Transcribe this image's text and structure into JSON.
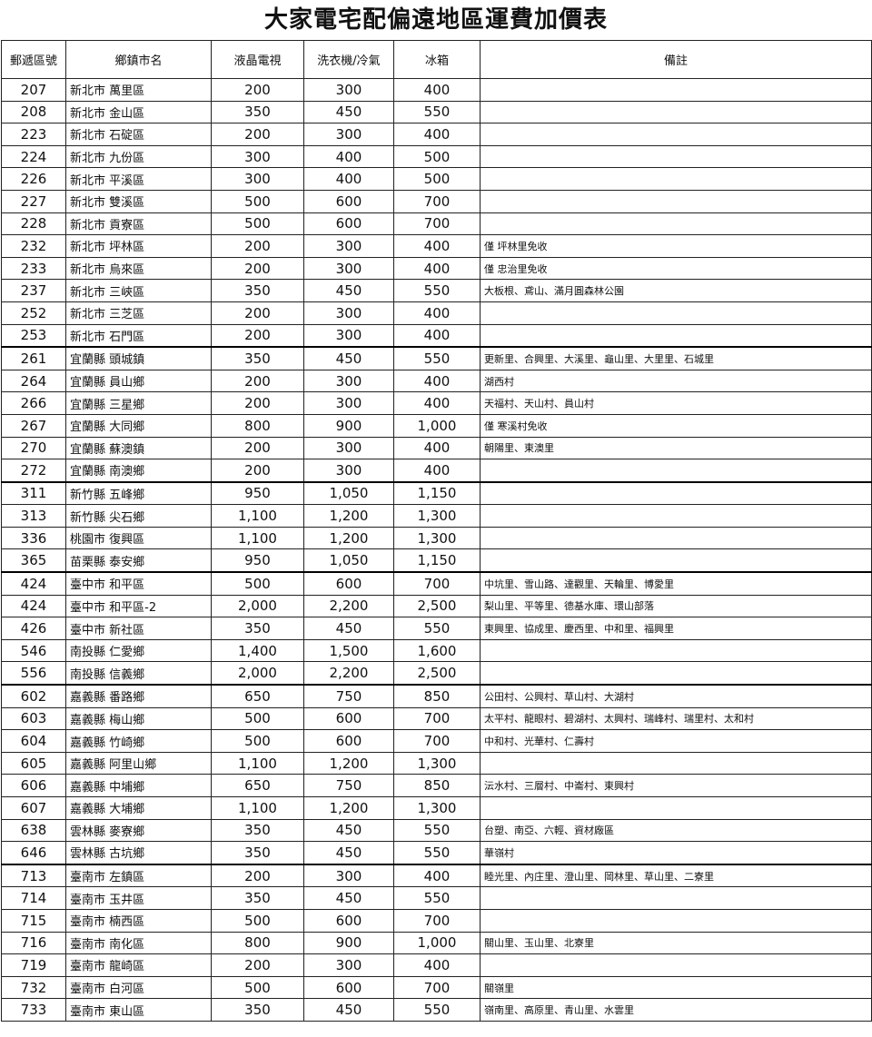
{
  "title": "大家電宅配偏遠地區運費加價表",
  "columns": [
    "郵遞區號",
    "鄉鎮市名",
    "液晶電視",
    "洗衣機/冷氣",
    "冰箱",
    "備註"
  ],
  "rows": [
    [
      "207",
      "新北市 萬里區",
      "200",
      "300",
      "400",
      ""
    ],
    [
      "208",
      "新北市 金山區",
      "350",
      "450",
      "550",
      ""
    ],
    [
      "223",
      "新北市 石碇區",
      "200",
      "300",
      "400",
      ""
    ],
    [
      "224",
      "新北市 九份區",
      "300",
      "400",
      "500",
      ""
    ],
    [
      "226",
      "新北市 平溪區",
      "300",
      "400",
      "500",
      ""
    ],
    [
      "227",
      "新北市 雙溪區",
      "500",
      "600",
      "700",
      ""
    ],
    [
      "228",
      "新北市 貢寮區",
      "500",
      "600",
      "700",
      ""
    ],
    [
      "232",
      "新北市 坪林區",
      "200",
      "300",
      "400",
      "僅 坪林里免收"
    ],
    [
      "233",
      "新北市 烏來區",
      "200",
      "300",
      "400",
      "僅 忠治里免收"
    ],
    [
      "237",
      "新北市 三峽區",
      "350",
      "450",
      "550",
      "大板根、鳶山、滿月圓森林公園"
    ],
    [
      "252",
      "新北市 三芝區",
      "200",
      "300",
      "400",
      ""
    ],
    [
      "253",
      "新北市 石門區",
      "200",
      "300",
      "400",
      ""
    ],
    [
      "261",
      "宜蘭縣 頭城鎮",
      "350",
      "450",
      "550",
      "更新里、合興里、大溪里、龜山里、大里里、石城里"
    ],
    [
      "264",
      "宜蘭縣 員山鄉",
      "200",
      "300",
      "400",
      "湖西村"
    ],
    [
      "266",
      "宜蘭縣 三星鄉",
      "200",
      "300",
      "400",
      "天福村、天山村、員山村"
    ],
    [
      "267",
      "宜蘭縣 大同鄉",
      "800",
      "900",
      "1,000",
      "僅 寒溪村免收"
    ],
    [
      "270",
      "宜蘭縣 蘇澳鎮",
      "200",
      "300",
      "400",
      "朝陽里、東澳里"
    ],
    [
      "272",
      "宜蘭縣 南澳鄉",
      "200",
      "300",
      "400",
      ""
    ],
    [
      "311",
      "新竹縣 五峰鄉",
      "950",
      "1,050",
      "1,150",
      ""
    ],
    [
      "313",
      "新竹縣 尖石鄉",
      "1,100",
      "1,200",
      "1,300",
      ""
    ],
    [
      "336",
      "桃園市 復興區",
      "1,100",
      "1,200",
      "1,300",
      ""
    ],
    [
      "365",
      "苗栗縣 泰安鄉",
      "950",
      "1,050",
      "1,150",
      ""
    ],
    [
      "424",
      "臺中市 和平區",
      "500",
      "600",
      "700",
      "中坑里、雪山路、達觀里、天輪里、博愛里"
    ],
    [
      "424",
      "臺中市 和平區-2",
      "2,000",
      "2,200",
      "2,500",
      "梨山里、平等里、德基水庫、環山部落"
    ],
    [
      "426",
      "臺中市 新社區",
      "350",
      "450",
      "550",
      "東興里、協成里、慶西里、中和里、福興里"
    ],
    [
      "546",
      "南投縣 仁愛鄉",
      "1,400",
      "1,500",
      "1,600",
      ""
    ],
    [
      "556",
      "南投縣 信義鄉",
      "2,000",
      "2,200",
      "2,500",
      ""
    ],
    [
      "602",
      "嘉義縣 番路鄉",
      "650",
      "750",
      "850",
      "公田村、公興村、草山村、大湖村"
    ],
    [
      "603",
      "嘉義縣 梅山鄉",
      "500",
      "600",
      "700",
      "太平村、龍眼村、碧湖村、太興村、瑞峰村、瑞里村、太和村"
    ],
    [
      "604",
      "嘉義縣 竹崎鄉",
      "500",
      "600",
      "700",
      "中和村、光華村、仁壽村"
    ],
    [
      "605",
      "嘉義縣 阿里山鄉",
      "1,100",
      "1,200",
      "1,300",
      ""
    ],
    [
      "606",
      "嘉義縣 中埔鄉",
      "650",
      "750",
      "850",
      "沄水村、三層村、中崙村、東興村"
    ],
    [
      "607",
      "嘉義縣 大埔鄉",
      "1,100",
      "1,200",
      "1,300",
      ""
    ],
    [
      "638",
      "雲林縣 麥寮鄉",
      "350",
      "450",
      "550",
      "台塑、南亞、六輕、資材廠區"
    ],
    [
      "646",
      "雲林縣 古坑鄉",
      "350",
      "450",
      "550",
      "華嶺村"
    ],
    [
      "713",
      "臺南市 左鎮區",
      "200",
      "300",
      "400",
      "睦光里、內庄里、澄山里、岡林里、草山里、二寮里"
    ],
    [
      "714",
      "臺南市 玉井區",
      "350",
      "450",
      "550",
      ""
    ],
    [
      "715",
      "臺南市 楠西區",
      "500",
      "600",
      "700",
      ""
    ],
    [
      "716",
      "臺南市 南化區",
      "800",
      "900",
      "1,000",
      "關山里、玉山里、北寮里"
    ],
    [
      "719",
      "臺南市 龍崎區",
      "200",
      "300",
      "400",
      ""
    ],
    [
      "732",
      "臺南市 白河區",
      "500",
      "600",
      "700",
      "關嶺里"
    ],
    [
      "733",
      "臺南市 東山區",
      "350",
      "450",
      "550",
      "嶺南里、高原里、青山里、水雲里"
    ]
  ]
}
